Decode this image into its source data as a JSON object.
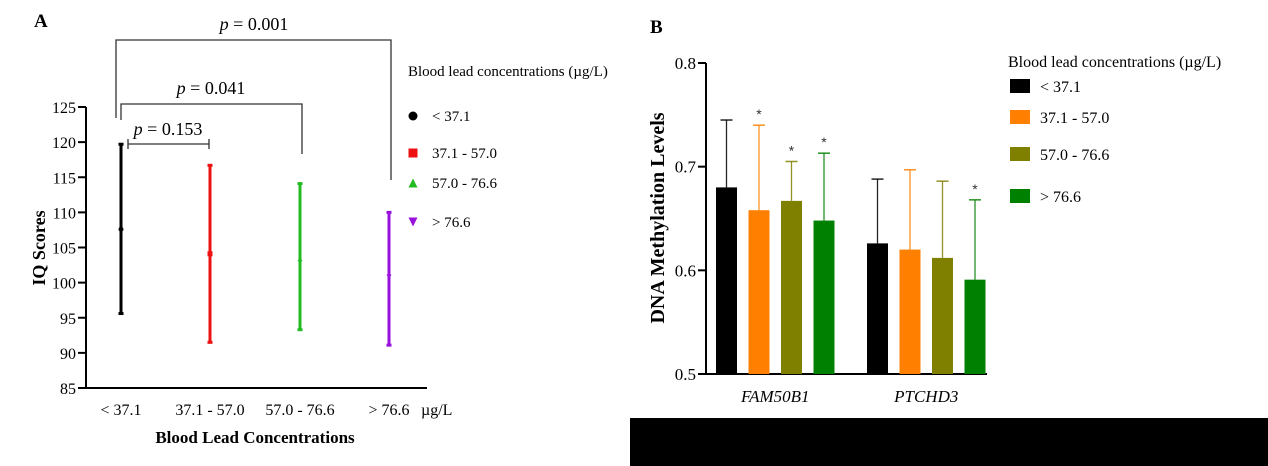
{
  "chart_data": [
    {
      "panel_label": "A",
      "type": "scatter",
      "subtype": "mean-with-error-bars",
      "title": "",
      "xlabel": "Blood Lead Concentrations",
      "x_unit": "µg/L",
      "ylabel": "IQ Scores",
      "ylim": [
        85,
        125
      ],
      "yticks": [
        85,
        90,
        95,
        100,
        105,
        110,
        115,
        120,
        125
      ],
      "grid": false,
      "categories": [
        "< 37.1",
        "37.1 - 57.0",
        "57.0 - 76.6",
        "> 76.6"
      ],
      "series": [
        {
          "name": "< 37.1",
          "marker": "circle",
          "color": "#000000",
          "mean": 107.6,
          "upper": 119.7,
          "lower": 95.6
        },
        {
          "name": "37.1 - 57.0",
          "marker": "square",
          "color": "#ee1111",
          "mean": 104.1,
          "upper": 116.7,
          "lower": 91.5
        },
        {
          "name": "57.0 - 76.6",
          "marker": "triangle-up",
          "color": "#22bb22",
          "mean": 103.4,
          "upper": 114.1,
          "lower": 93.3
        },
        {
          "name": "> 76.6",
          "marker": "triangle-down",
          "color": "#9911dd",
          "mean": 100.8,
          "upper": 110.0,
          "lower": 91.1
        }
      ],
      "legend": {
        "title": "Blood lead concentrations (µg/L)",
        "position": "right"
      },
      "annotations": [
        {
          "from": 0,
          "to": 1,
          "text_p": "p",
          "text_rest": " = 0.153"
        },
        {
          "from": 0,
          "to": 2,
          "text_p": "p",
          "text_rest": " = 0.041"
        },
        {
          "from": 0,
          "to": 3,
          "text_p": "p",
          "text_rest": " = 0.001"
        }
      ]
    },
    {
      "panel_label": "B",
      "type": "bar",
      "subtype": "grouped-with-error-bars",
      "title": "",
      "xlabel": "",
      "ylabel": "DNA Methylation Levels",
      "ylim": [
        0.5,
        0.8
      ],
      "yticks": [
        "0.5",
        "0.6",
        "0.7",
        "0.8"
      ],
      "grid": false,
      "categories": [
        "FAM50B1",
        "PTCHD3"
      ],
      "series": [
        {
          "name": "< 37.1",
          "color": "#000000",
          "values": [
            0.68,
            0.626
          ],
          "err_upper": [
            0.745,
            0.688
          ],
          "significant": [
            false,
            false
          ]
        },
        {
          "name": "37.1 - 57.0",
          "color": "#ff7f00",
          "values": [
            0.658,
            0.62
          ],
          "err_upper": [
            0.74,
            0.697
          ],
          "significant": [
            true,
            false
          ]
        },
        {
          "name": "57.0 - 76.6",
          "color": "#808000",
          "values": [
            0.667,
            0.612
          ],
          "err_upper": [
            0.705,
            0.686
          ],
          "significant": [
            true,
            false
          ]
        },
        {
          "name": "> 76.6",
          "color": "#008000",
          "values": [
            0.648,
            0.591
          ],
          "err_upper": [
            0.713,
            0.668
          ],
          "significant": [
            true,
            true
          ]
        }
      ],
      "significance_marker": "*",
      "legend": {
        "title": "Blood lead concentrations (µg/L)",
        "position": "top-right"
      }
    }
  ]
}
